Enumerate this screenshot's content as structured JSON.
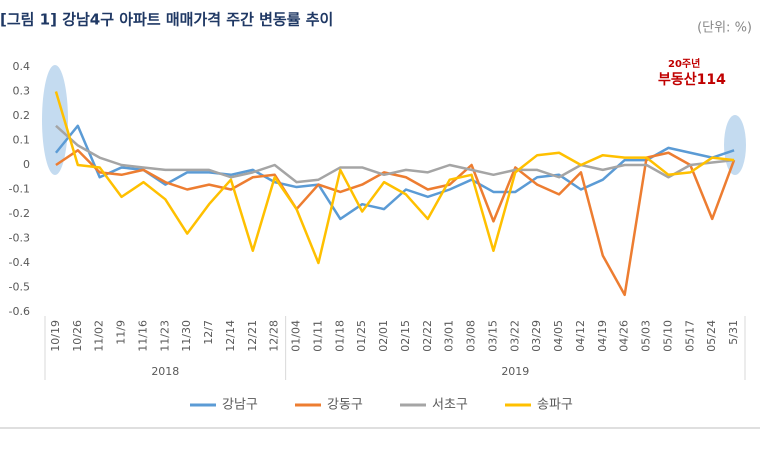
{
  "chart_data": {
    "type": "line",
    "title": "[그림 1] 강남4구 아파트 매매가격 주간 변동률 추이",
    "unit_label": "(단위: %)",
    "logo": {
      "badge": "20주년",
      "name": "부동산114"
    },
    "categories": [
      "10/19",
      "10/26",
      "11/02",
      "11/9",
      "11/16",
      "11/23",
      "11/30",
      "12/7",
      "12/14",
      "12/21",
      "12/28",
      "01/04",
      "01/11",
      "01/18",
      "01/25",
      "02/01",
      "02/15",
      "02/22",
      "03/01",
      "03/08",
      "03/15",
      "03/22",
      "03/29",
      "04/05",
      "04/12",
      "04/19",
      "04/26",
      "05/03",
      "05/10",
      "05/17",
      "05/24",
      "5/31"
    ],
    "groups": [
      {
        "name": "2018",
        "count": 11
      },
      {
        "name": "2019",
        "count": 21
      }
    ],
    "series": [
      {
        "name": "강남구",
        "color": "#5b9bd5",
        "values": [
          0.05,
          0.16,
          -0.05,
          -0.01,
          -0.02,
          -0.08,
          -0.03,
          -0.03,
          -0.04,
          -0.02,
          -0.07,
          -0.09,
          -0.08,
          -0.22,
          -0.16,
          -0.18,
          -0.1,
          -0.13,
          -0.1,
          -0.06,
          -0.11,
          -0.11,
          -0.05,
          -0.04,
          -0.1,
          -0.06,
          0.02,
          0.02,
          0.07,
          0.05,
          0.03,
          0.06
        ]
      },
      {
        "name": "강동구",
        "color": "#ed7d31",
        "values": [
          0.0,
          0.06,
          -0.03,
          -0.04,
          -0.02,
          -0.07,
          -0.1,
          -0.08,
          -0.1,
          -0.05,
          -0.04,
          -0.18,
          -0.08,
          -0.11,
          -0.08,
          -0.03,
          -0.05,
          -0.1,
          -0.08,
          0.0,
          -0.23,
          -0.01,
          -0.08,
          -0.12,
          -0.03,
          -0.37,
          -0.53,
          0.03,
          0.05,
          0.0,
          -0.22,
          0.02
        ]
      },
      {
        "name": "서초구",
        "color": "#a5a5a5",
        "values": [
          0.16,
          0.08,
          0.03,
          0.0,
          -0.01,
          -0.02,
          -0.02,
          -0.02,
          -0.05,
          -0.03,
          0.0,
          -0.07,
          -0.06,
          -0.01,
          -0.01,
          -0.04,
          -0.02,
          -0.03,
          0.0,
          -0.02,
          -0.04,
          -0.02,
          -0.02,
          -0.05,
          0.0,
          -0.02,
          0.0,
          0.0,
          -0.05,
          0.0,
          0.01,
          0.02
        ]
      },
      {
        "name": "송파구",
        "color": "#ffc000",
        "values": [
          0.3,
          0.0,
          -0.01,
          -0.13,
          -0.07,
          -0.14,
          -0.28,
          -0.16,
          -0.06,
          -0.35,
          -0.05,
          -0.18,
          -0.4,
          -0.02,
          -0.19,
          -0.07,
          -0.12,
          -0.22,
          -0.06,
          -0.04,
          -0.35,
          -0.03,
          0.04,
          0.05,
          0.0,
          0.04,
          0.03,
          0.03,
          -0.04,
          -0.03,
          0.03,
          0.02
        ]
      }
    ],
    "ylim": [
      -0.6,
      0.4
    ],
    "yticks": [
      0.4,
      0.3,
      0.2,
      0.1,
      0,
      -0.1,
      -0.2,
      -0.3,
      -0.4,
      -0.5,
      -0.6
    ],
    "grid": false,
    "legend": "bottom"
  }
}
